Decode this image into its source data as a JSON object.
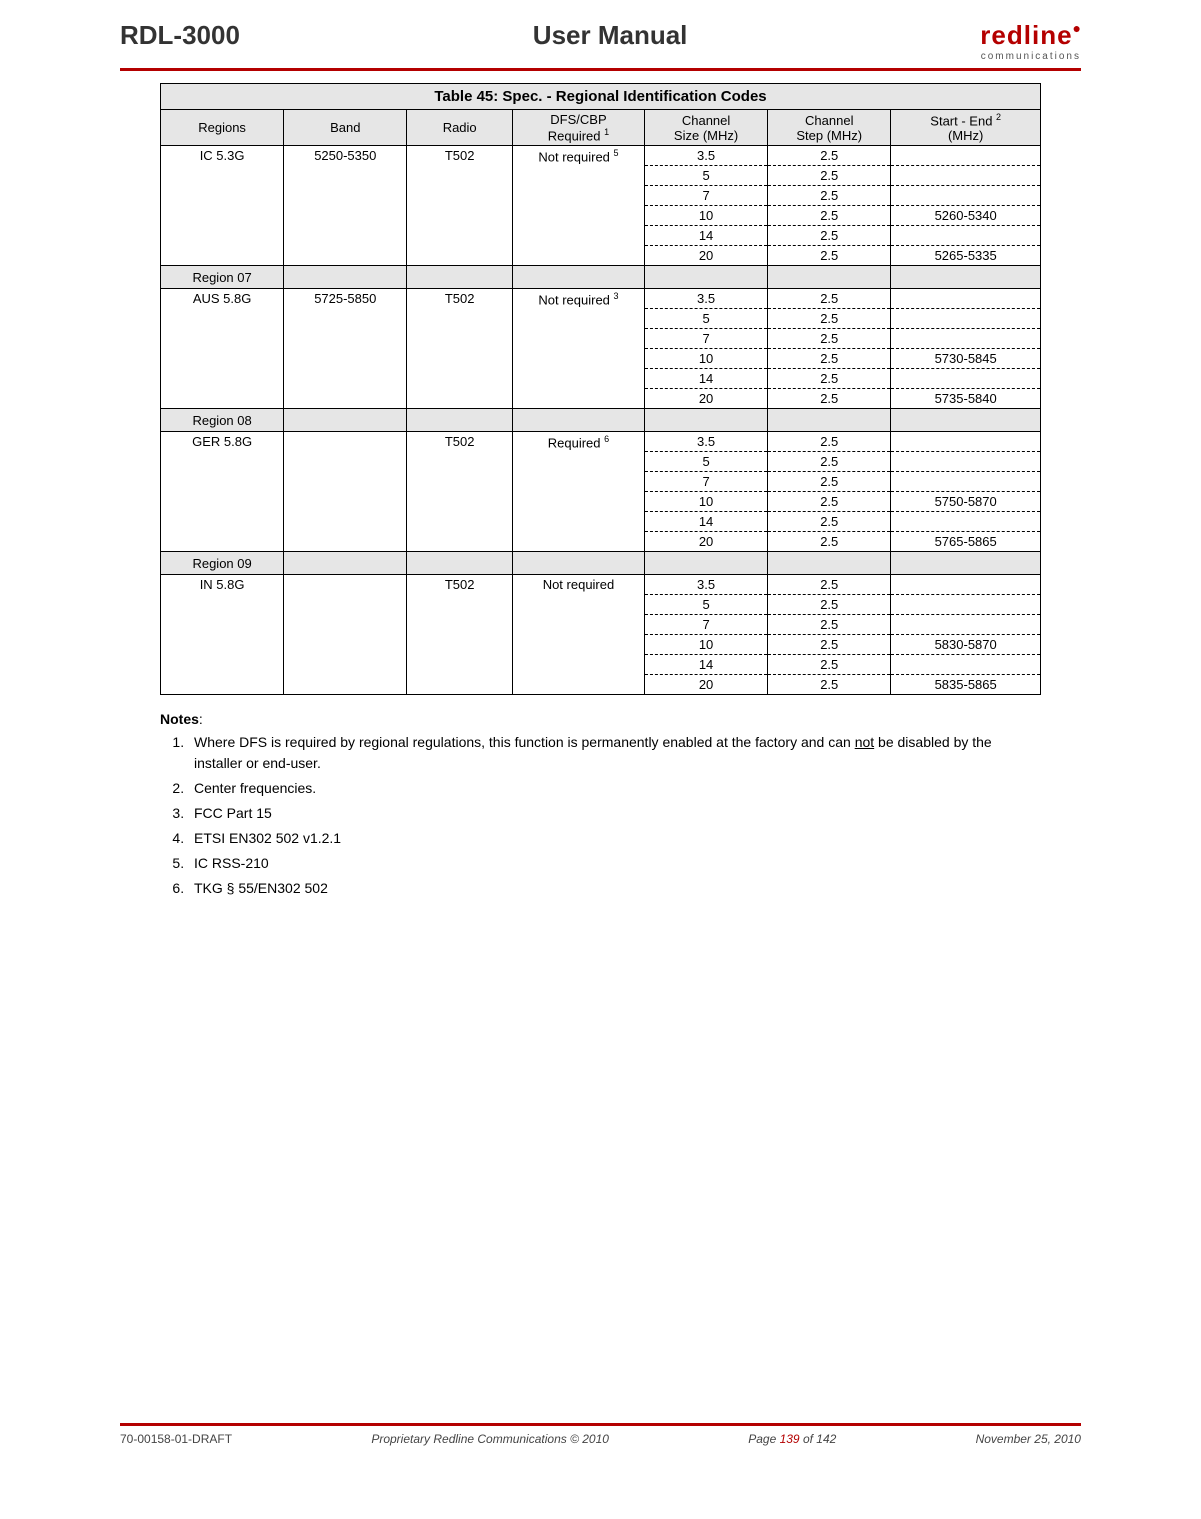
{
  "header": {
    "left": "RDL-3000",
    "center": "User Manual",
    "logo_main": "redline",
    "logo_sub": "communications"
  },
  "table": {
    "title_prefix": "Table 45",
    "title_rest": ": Spec. - Regional Identification Codes",
    "columns": {
      "regions": "Regions",
      "band": "Band",
      "radio": "Radio",
      "dfs_line1": "DFS/CBP",
      "dfs_line2_pre": "Required ",
      "dfs_sup": "1",
      "ch_size_line1": "Channel",
      "ch_size_line2": "Size (MHz)",
      "ch_step_line1": "Channel",
      "ch_step_line2": "Step (MHz)",
      "start_end_pre": "Start - End ",
      "start_end_sup": "2",
      "start_end_line2": "(MHz)"
    },
    "groups": [
      {
        "region": "IC 5.3G",
        "band": "5250-5350",
        "radio": "T502",
        "dfs": "Not required ",
        "dfs_sup": "5",
        "rows": [
          {
            "size": "3.5",
            "step": "2.5",
            "range": ""
          },
          {
            "size": "5",
            "step": "2.5",
            "range": ""
          },
          {
            "size": "7",
            "step": "2.5",
            "range": ""
          },
          {
            "size": "10",
            "step": "2.5",
            "range": "5260-5340"
          },
          {
            "size": "14",
            "step": "2.5",
            "range": ""
          },
          {
            "size": "20",
            "step": "2.5",
            "range": "5265-5335"
          }
        ]
      },
      {
        "separator": "Region 07"
      },
      {
        "region": "AUS 5.8G",
        "band": "5725-5850",
        "radio": "T502",
        "dfs": "Not required ",
        "dfs_sup": "3",
        "rows": [
          {
            "size": "3.5",
            "step": "2.5",
            "range": ""
          },
          {
            "size": "5",
            "step": "2.5",
            "range": ""
          },
          {
            "size": "7",
            "step": "2.5",
            "range": ""
          },
          {
            "size": "10",
            "step": "2.5",
            "range": "5730-5845"
          },
          {
            "size": "14",
            "step": "2.5",
            "range": ""
          },
          {
            "size": "20",
            "step": "2.5",
            "range": "5735-5840"
          }
        ]
      },
      {
        "separator": "Region 08"
      },
      {
        "region": "GER 5.8G",
        "band": "",
        "radio": "T502",
        "dfs": "Required ",
        "dfs_sup": "6",
        "rows": [
          {
            "size": "3.5",
            "step": "2.5",
            "range": ""
          },
          {
            "size": "5",
            "step": "2.5",
            "range": ""
          },
          {
            "size": "7",
            "step": "2.5",
            "range": ""
          },
          {
            "size": "10",
            "step": "2.5",
            "range": "5750-5870"
          },
          {
            "size": "14",
            "step": "2.5",
            "range": ""
          },
          {
            "size": "20",
            "step": "2.5",
            "range": "5765-5865"
          }
        ]
      },
      {
        "separator": "Region 09"
      },
      {
        "region": "IN 5.8G",
        "band": "",
        "radio": "T502",
        "dfs": "Not required",
        "dfs_sup": "",
        "rows": [
          {
            "size": "3.5",
            "step": "2.5",
            "range": ""
          },
          {
            "size": "5",
            "step": "2.5",
            "range": ""
          },
          {
            "size": "7",
            "step": "2.5",
            "range": ""
          },
          {
            "size": "10",
            "step": "2.5",
            "range": "5830-5870"
          },
          {
            "size": "14",
            "step": "2.5",
            "range": ""
          },
          {
            "size": "20",
            "step": "2.5",
            "range": "5835-5865"
          }
        ]
      }
    ]
  },
  "notes": {
    "title": "Notes",
    "items": [
      {
        "pre": "Where DFS is required by regional regulations, this function is permanently enabled at the factory and can ",
        "underlined": "not",
        "post": " be disabled by the installer or end-user."
      },
      {
        "text": "Center frequencies."
      },
      {
        "text": "FCC Part 15"
      },
      {
        "text": "ETSI EN302 502 v1.2.1"
      },
      {
        "text": "IC RSS-210"
      },
      {
        "text": "TKG § 55/EN302 502"
      }
    ]
  },
  "footer": {
    "doc": "70-00158-01-DRAFT",
    "center": "Proprietary Redline Communications © 2010",
    "page_pre": "Page ",
    "page_num": "139",
    "page_post": " of 142",
    "date": "November 25, 2010"
  }
}
